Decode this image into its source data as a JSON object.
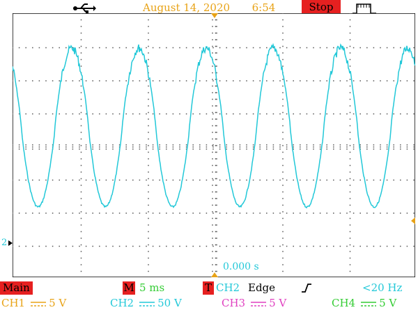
{
  "header": {
    "usb_icon": "usb-icon",
    "date": "August 14, 2020",
    "time": "6:54",
    "run_state": "Stop",
    "run_state_color": "#e62020",
    "trigger_mode_icon": "pulse-trigger-icon"
  },
  "screen": {
    "grid": true,
    "divisions_x": 12,
    "divisions_y": 8,
    "trace_color": "#22c8d8",
    "ch2_marker": "2",
    "time_offset": "0.000 s"
  },
  "status": {
    "main_label": "Main",
    "timebase_tag": "M",
    "timebase": "5 ms",
    "trigger_tag": "T",
    "trigger_source": "CH2",
    "trigger_type": "Edge",
    "trigger_slope_icon": "rising-edge-icon",
    "frequency": "<20 Hz"
  },
  "channels": [
    {
      "name": "CH1",
      "scale": "5 V",
      "color": "#e8a317"
    },
    {
      "name": "CH2",
      "scale": "50 V",
      "color": "#22c8d8"
    },
    {
      "name": "CH3",
      "scale": "5 V",
      "color": "#e040c0"
    },
    {
      "name": "CH4",
      "scale": "5 V",
      "color": "#33cc33"
    }
  ]
}
